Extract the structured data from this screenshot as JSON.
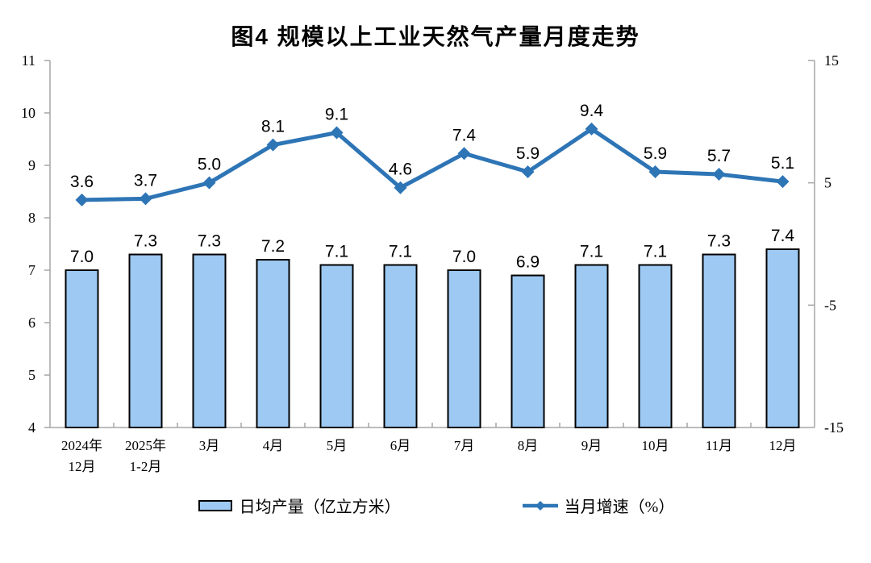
{
  "figure": {
    "title": "图4 规模以上工业天然气产量月度走势"
  },
  "chart_data": {
    "type": "combo-bar-line",
    "title": "图4 规模以上工业天然气产量月度走势",
    "categories": [
      [
        "2024年",
        "12月"
      ],
      [
        "2025年",
        "1-2月"
      ],
      [
        "3月"
      ],
      [
        "4月"
      ],
      [
        "5月"
      ],
      [
        "6月"
      ],
      [
        "7月"
      ],
      [
        "8月"
      ],
      [
        "9月"
      ],
      [
        "10月"
      ],
      [
        "11月"
      ],
      [
        "12月"
      ]
    ],
    "series": [
      {
        "name": "日均产量（亿立方米）",
        "type": "bar",
        "axis": "left",
        "values": [
          7.0,
          7.3,
          7.3,
          7.2,
          7.1,
          7.1,
          7.0,
          6.9,
          7.1,
          7.1,
          7.3,
          7.4
        ]
      },
      {
        "name": "当月增速（%）",
        "type": "line",
        "axis": "right",
        "values": [
          3.6,
          3.7,
          5.0,
          8.1,
          9.1,
          4.6,
          7.4,
          5.9,
          9.4,
          5.9,
          5.7,
          5.1
        ]
      }
    ],
    "left_axis": {
      "min": 4,
      "max": 11,
      "ticks": [
        4,
        5,
        6,
        7,
        8,
        9,
        10,
        11
      ]
    },
    "right_axis": {
      "min": -15,
      "max": 15,
      "ticks": [
        -15,
        -5,
        5,
        15
      ]
    },
    "grid": false,
    "legend_position": "bottom",
    "colors": {
      "bar_fill": "#9DC9F2",
      "bar_border": "#000000",
      "line": "#2E75B6",
      "axis": "#A6A6A6",
      "label": "#000000"
    }
  },
  "legend": {
    "items": [
      {
        "label": "日均产量（亿立方米）",
        "swatch": "bar"
      },
      {
        "label": "当月增速（%）",
        "swatch": "line"
      }
    ]
  }
}
